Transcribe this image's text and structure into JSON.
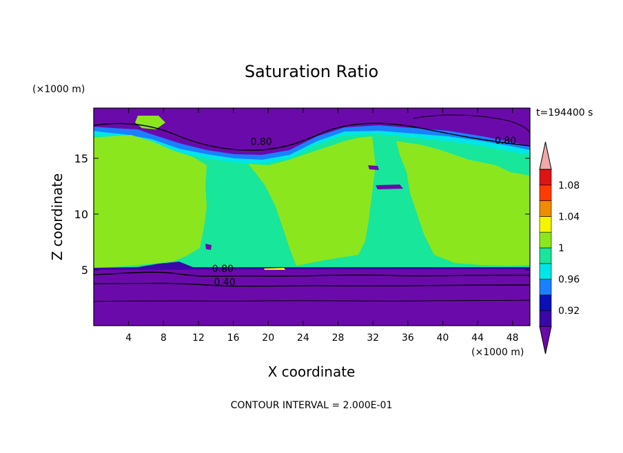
{
  "chart_data": {
    "type": "heatmap",
    "title": "Saturation Ratio",
    "xlabel": "X coordinate",
    "ylabel": "Z coordinate",
    "x_unit": "(×1000 m)",
    "z_unit": "(×1000 m)",
    "time_label": "t=194400 s",
    "footer": "CONTOUR INTERVAL = 2.000E-01",
    "xlim": [
      0,
      50
    ],
    "ylim": [
      0,
      19.5
    ],
    "x_ticks": [
      4,
      8,
      12,
      16,
      20,
      24,
      28,
      32,
      36,
      40,
      44,
      48
    ],
    "y_ticks": [
      5,
      10,
      15
    ],
    "colorbar": {
      "levels": [
        0.92,
        0.94,
        0.96,
        0.98,
        1.0,
        1.02,
        1.04,
        1.06,
        1.08,
        1.1
      ],
      "tick_labels": [
        "0.92",
        "0.96",
        "1",
        "1.04",
        "1.08"
      ],
      "colors": [
        "#6b0aaa",
        "#3a08a6",
        "#0a10b4",
        "#1a80ff",
        "#00e6e6",
        "#18e69a",
        "#8ce61e",
        "#f5f500",
        "#f08c00",
        "#ff3c00",
        "#dd1414",
        "#f0a8a8"
      ]
    },
    "contour_labels": [
      {
        "text": "0.80",
        "x": 19.2,
        "z": 16.2
      },
      {
        "text": "0.80",
        "x": 47.2,
        "z": 16.3
      },
      {
        "text": "0.80",
        "x": 14.8,
        "z": 4.8
      },
      {
        "text": "0.40",
        "x": 15.0,
        "z": 3.6
      }
    ]
  }
}
